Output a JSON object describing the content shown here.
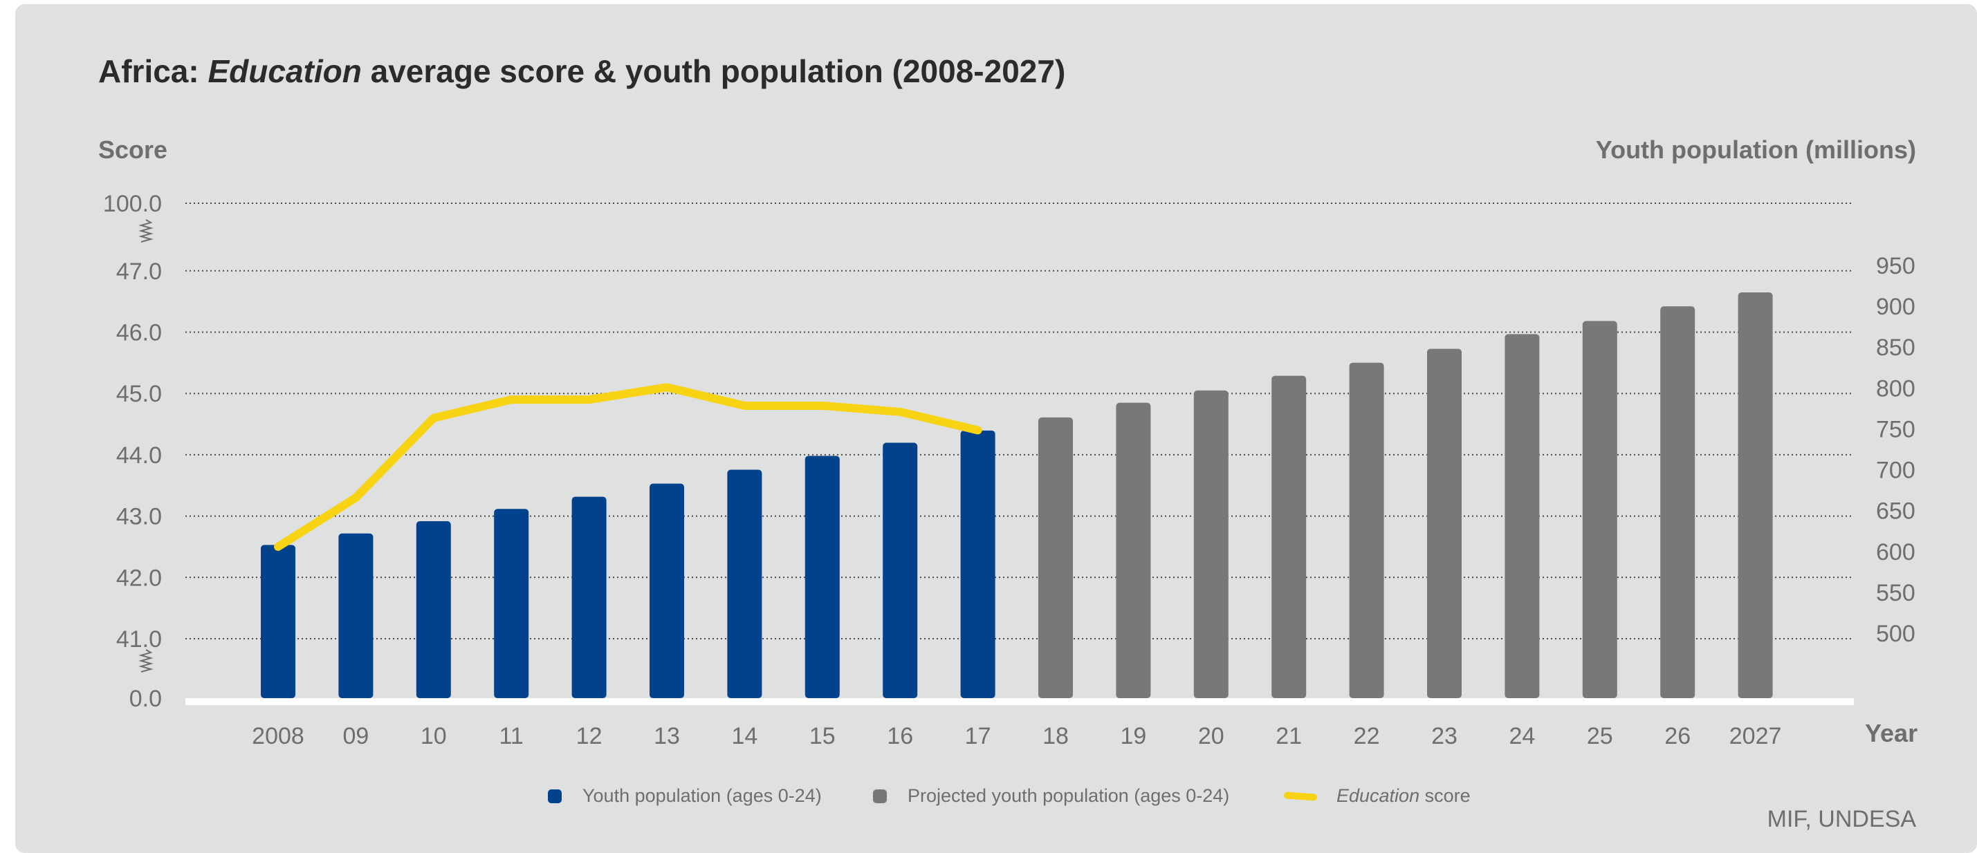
{
  "title": {
    "prefix": "Africa: ",
    "italic": "Education",
    "suffix": " average score & youth population (2008-2027)"
  },
  "source": "MIF, UNDESA",
  "legend": {
    "youth": "Youth population (ages 0-24)",
    "projected": "Projected youth population (ages 0-24)",
    "score_italic": "Education",
    "score_suffix": " score"
  },
  "colors": {
    "youth": "#02418c",
    "projected": "#77787a",
    "score": "#f7d314",
    "panel": "#dfe0e0"
  },
  "chart_data": {
    "type": "bar",
    "title": "Africa: Education average score & youth population (2008-2027)",
    "xlabel": "Year",
    "ylabel_left": "Score",
    "ylabel_right": "Youth population (millions)",
    "categories": [
      "2008",
      "09",
      "10",
      "11",
      "12",
      "13",
      "14",
      "15",
      "16",
      "17",
      "18",
      "19",
      "20",
      "21",
      "22",
      "23",
      "24",
      "25",
      "26",
      "2027"
    ],
    "left_ticks": [
      "0.0",
      "41.0",
      "42.0",
      "43.0",
      "44.0",
      "45.0",
      "46.0",
      "47.0",
      "100.0"
    ],
    "left_axis_break": true,
    "right_ticks": [
      500,
      550,
      600,
      650,
      700,
      750,
      800,
      850,
      900,
      950
    ],
    "right_ylim": [
      500,
      950
    ],
    "series": [
      {
        "name": "Youth population (ages 0-24)",
        "kind": "bar",
        "axis": "right",
        "values": [
          608,
          622,
          637,
          652,
          667,
          683,
          700,
          717,
          733,
          748,
          null,
          null,
          null,
          null,
          null,
          null,
          null,
          null,
          null,
          null
        ]
      },
      {
        "name": "Projected youth population (ages 0-24)",
        "kind": "bar",
        "axis": "right",
        "values": [
          null,
          null,
          null,
          null,
          null,
          null,
          null,
          null,
          null,
          null,
          764,
          782,
          797,
          815,
          831,
          848,
          866,
          882,
          900,
          917
        ]
      },
      {
        "name": "Education score",
        "kind": "line",
        "axis": "left",
        "values": [
          42.5,
          43.3,
          44.6,
          44.9,
          44.9,
          45.1,
          44.8,
          44.8,
          44.7,
          44.4,
          null,
          null,
          null,
          null,
          null,
          null,
          null,
          null,
          null,
          null
        ]
      }
    ],
    "grid": true,
    "legend_position": "bottom"
  }
}
